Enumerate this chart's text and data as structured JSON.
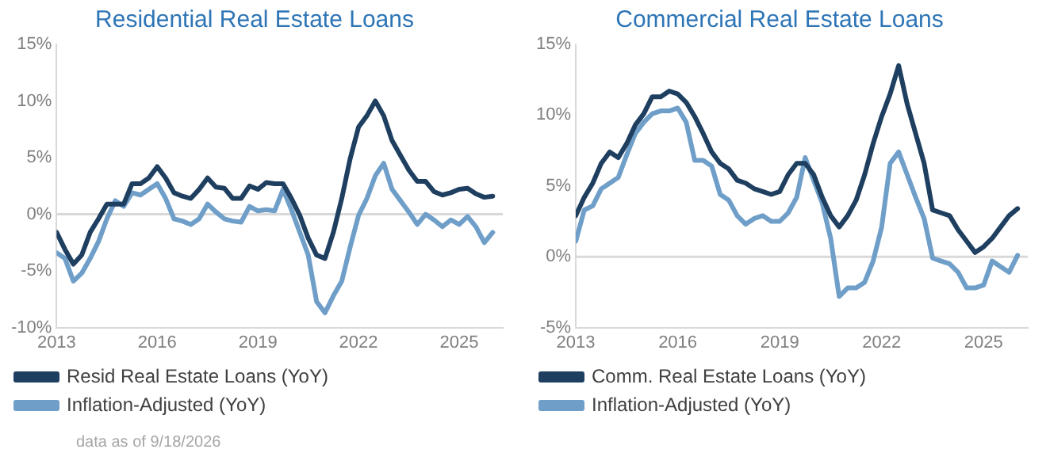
{
  "chart_data": [
    {
      "type": "line",
      "title": "Residential Real Estate Loans",
      "x": [
        2013,
        2013.25,
        2013.5,
        2013.75,
        2014,
        2014.25,
        2014.5,
        2014.75,
        2015,
        2015.25,
        2015.5,
        2015.75,
        2016,
        2016.25,
        2016.5,
        2016.75,
        2017,
        2017.25,
        2017.5,
        2017.75,
        2018,
        2018.25,
        2018.5,
        2018.75,
        2019,
        2019.25,
        2019.5,
        2019.75,
        2020,
        2020.25,
        2020.5,
        2020.75,
        2021,
        2021.25,
        2021.5,
        2021.75,
        2022,
        2022.25,
        2022.5,
        2022.75,
        2023,
        2023.25,
        2023.5,
        2023.75,
        2024,
        2024.25,
        2024.5,
        2024.75,
        2025,
        2025.25,
        2025.5,
        2025.75,
        2026
      ],
      "series": [
        {
          "name": "Resid Real Estate Loans (YoY)",
          "color": "#1f3f60",
          "values": [
            -1.6,
            -3.1,
            -4.4,
            -3.6,
            -1.6,
            -0.4,
            0.9,
            0.9,
            0.9,
            2.7,
            2.7,
            3.2,
            4.2,
            3.2,
            1.9,
            1.6,
            1.4,
            2.2,
            3.2,
            2.4,
            2.3,
            1.4,
            1.4,
            2.5,
            2.2,
            2.8,
            2.7,
            2.7,
            1.4,
            -0.1,
            -2.1,
            -3.6,
            -3.9,
            -1.6,
            1.4,
            4.9,
            7.7,
            8.7,
            10,
            8.7,
            6.5,
            5.2,
            3.9,
            2.9,
            2.9,
            2,
            1.7,
            1.9,
            2.2,
            2.3,
            1.8,
            1.5,
            1.6
          ]
        },
        {
          "name": "Inflation-Adjusted (YoY)",
          "color": "#6f9fc9",
          "values": [
            -3.4,
            -3.9,
            -5.9,
            -5.2,
            -3.9,
            -2.4,
            -0.4,
            1.2,
            0.7,
            1.9,
            1.7,
            2.2,
            2.7,
            1.4,
            -0.4,
            -0.6,
            -0.9,
            -0.4,
            0.9,
            0.2,
            -0.4,
            -0.6,
            -0.7,
            0.7,
            0.3,
            0.4,
            0.3,
            2.2,
            0.4,
            -1.6,
            -3.6,
            -7.7,
            -8.7,
            -7.2,
            -5.9,
            -2.9,
            -0.1,
            1.4,
            3.4,
            4.5,
            2.2,
            1.2,
            0.2,
            -0.9,
            0,
            -0.5,
            -1.1,
            -0.5,
            -0.9,
            -0.2,
            -1.1,
            -2.5,
            -1.6
          ]
        }
      ],
      "xlim": [
        2013,
        2026.3
      ],
      "xticks": [
        2013,
        2016,
        2019,
        2022,
        2025
      ],
      "ylim": [
        -10,
        15
      ],
      "yticks": [
        {
          "value": -10,
          "label": "-10%"
        },
        {
          "value": -5,
          "label": "-5%"
        },
        {
          "value": 0,
          "label": "0%"
        },
        {
          "value": 5,
          "label": "5%"
        },
        {
          "value": 10,
          "label": "10%"
        },
        {
          "value": 15,
          "label": "15%"
        }
      ],
      "grid": false,
      "legend": "bottom",
      "marker": "none",
      "line_style": "solid",
      "ref_lines": [
        {
          "axis": "y",
          "value": 0,
          "color": "#d9d9d9"
        }
      ],
      "annotations": [
        "data as of 9/18/2026"
      ]
    },
    {
      "type": "line",
      "title": "Commercial Real Estate Loans",
      "x": [
        2013,
        2013.25,
        2013.5,
        2013.75,
        2014,
        2014.25,
        2014.5,
        2014.75,
        2015,
        2015.25,
        2015.5,
        2015.75,
        2016,
        2016.25,
        2016.5,
        2016.75,
        2017,
        2017.25,
        2017.5,
        2017.75,
        2018,
        2018.25,
        2018.5,
        2018.75,
        2019,
        2019.25,
        2019.5,
        2019.75,
        2020,
        2020.25,
        2020.5,
        2020.75,
        2021,
        2021.25,
        2021.5,
        2021.75,
        2022,
        2022.25,
        2022.5,
        2022.75,
        2023,
        2023.25,
        2023.5,
        2023.75,
        2024,
        2024.25,
        2024.5,
        2024.75,
        2025,
        2025.25,
        2025.5,
        2025.75,
        2026
      ],
      "series": [
        {
          "name": "Comm. Real Estate Loans (YoY)",
          "color": "#1f3f60",
          "values": [
            2.9,
            4.2,
            5.2,
            6.6,
            7.4,
            7,
            8,
            9.3,
            10.1,
            11.3,
            11.3,
            11.7,
            11.5,
            10.9,
            9.9,
            8.7,
            7.4,
            6.6,
            6.2,
            5.4,
            5.2,
            4.8,
            4.6,
            4.4,
            4.6,
            5.8,
            6.6,
            6.6,
            5.8,
            4.2,
            2.9,
            2.1,
            2.9,
            4,
            5.8,
            8,
            9.9,
            11.5,
            13.5,
            10.8,
            8.7,
            6.6,
            3.3,
            3.1,
            2.9,
            1.9,
            1.1,
            0.3,
            0.7,
            1.3,
            2.1,
            2.9,
            3.4
          ]
        },
        {
          "name": "Inflation-Adjusted (YoY)",
          "color": "#6f9fc9",
          "values": [
            1.1,
            3.3,
            3.6,
            4.8,
            5.2,
            5.6,
            7.2,
            8.7,
            9.5,
            10.1,
            10.3,
            10.3,
            10.5,
            9.5,
            6.8,
            6.8,
            6.4,
            4.4,
            4,
            2.9,
            2.3,
            2.7,
            2.9,
            2.5,
            2.5,
            3.1,
            4.2,
            7,
            5.4,
            3.8,
            1.3,
            -2.8,
            -2.2,
            -2.2,
            -1.8,
            -0.3,
            2.1,
            6.6,
            7.4,
            5.8,
            4.2,
            2.7,
            -0.1,
            -0.3,
            -0.5,
            -1.1,
            -2.2,
            -2.2,
            -2,
            -0.3,
            -0.7,
            -1.1,
            0.1
          ]
        }
      ],
      "xlim": [
        2013,
        2026.3
      ],
      "xticks": [
        2013,
        2016,
        2019,
        2022,
        2025
      ],
      "ylim": [
        -5,
        15
      ],
      "yticks": [
        {
          "value": -5,
          "label": "-5%"
        },
        {
          "value": 0,
          "label": "0%"
        },
        {
          "value": 5,
          "label": "5%"
        },
        {
          "value": 10,
          "label": "10%"
        },
        {
          "value": 15,
          "label": "15%"
        }
      ],
      "grid": false,
      "legend": "bottom",
      "marker": "none",
      "line_style": "solid",
      "ref_lines": [
        {
          "axis": "y",
          "value": 0,
          "color": "#d9d9d9"
        }
      ]
    }
  ]
}
